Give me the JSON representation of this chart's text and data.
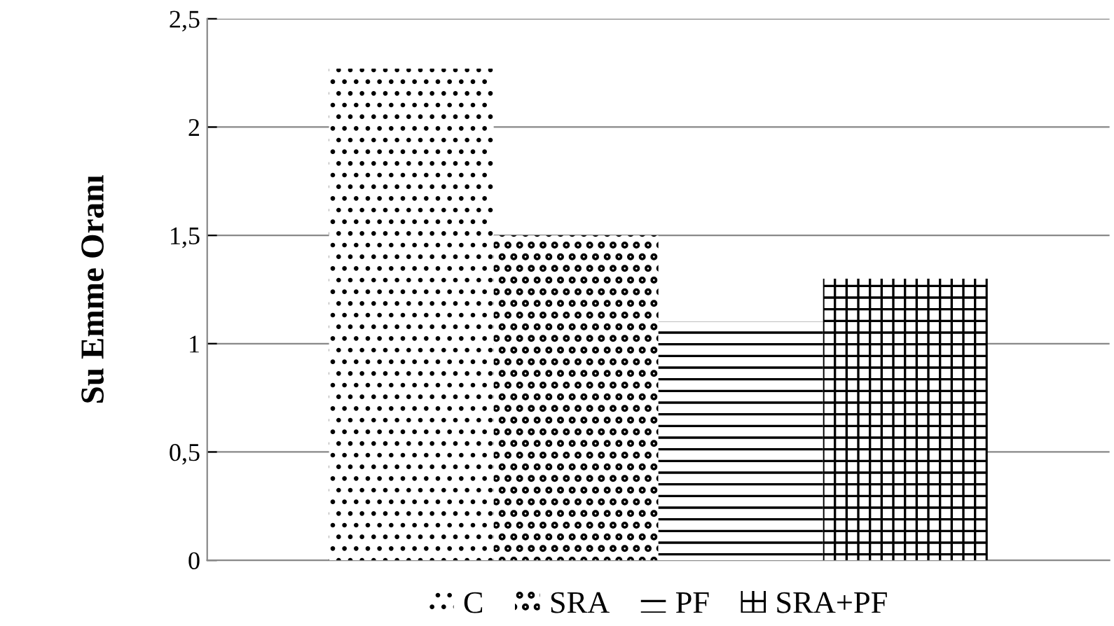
{
  "chart_data": {
    "type": "bar",
    "ylabel": "Su Emme Oranı",
    "categories": [
      null
    ],
    "series": [
      {
        "name": "C",
        "color": "#000000",
        "values": [
          2.27
        ]
      },
      {
        "name": "SRA",
        "color": "#000000",
        "values": [
          1.5
        ]
      },
      {
        "name": "PF",
        "color": "#000000",
        "values": [
          1.1
        ]
      },
      {
        "name": "SRA+PF",
        "color": "#000000",
        "values": [
          1.3
        ]
      }
    ],
    "ylim": [
      0,
      2.5
    ],
    "yticks": [
      0,
      {
        "value": 0.5,
        "label": "0,5"
      },
      1,
      {
        "value": 1.5,
        "label": "1,5"
      },
      2,
      {
        "value": 2.5,
        "label": "2,5"
      }
    ],
    "grid": "y",
    "legend": "bottom"
  }
}
